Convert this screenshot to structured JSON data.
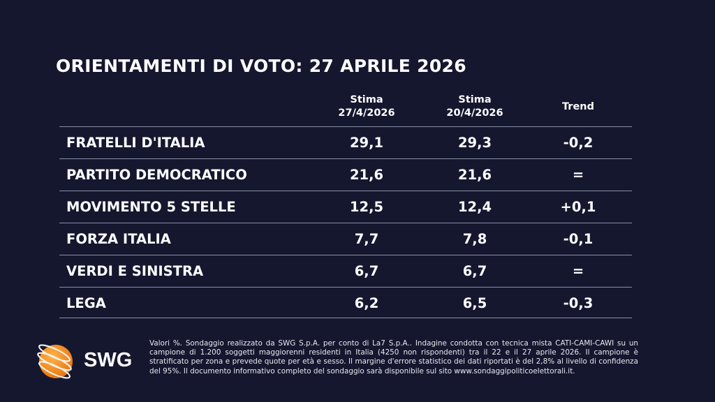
{
  "title": "ORIENTAMENTI DI VOTO: 27 APRILE 2026",
  "chart_data": {
    "type": "table",
    "columns": [
      {
        "line1": "Stima",
        "line2": "27/4/2026"
      },
      {
        "line1": "Stima",
        "line2": "20/4/2026"
      },
      {
        "line1": "Trend",
        "line2": ""
      }
    ],
    "rows": [
      {
        "party": "FRATELLI D'ITALIA",
        "current": "29,1",
        "previous": "29,3",
        "trend": "-0,2"
      },
      {
        "party": "PARTITO DEMOCRATICO",
        "current": "21,6",
        "previous": "21,6",
        "trend": "="
      },
      {
        "party": "MOVIMENTO 5 STELLE",
        "current": "12,5",
        "previous": "12,4",
        "trend": "+0,1"
      },
      {
        "party": "FORZA ITALIA",
        "current": "7,7",
        "previous": "7,8",
        "trend": "-0,1"
      },
      {
        "party": "VERDI E SINISTRA",
        "current": "6,7",
        "previous": "6,7",
        "trend": "="
      },
      {
        "party": "LEGA",
        "current": "6,2",
        "previous": "6,5",
        "trend": "-0,3"
      }
    ]
  },
  "footnote": "Valori %. Sondaggio realizzato da SWG S.p.A. per conto di La7 S.p.A.. Indagine condotta con tecnica mista CATI-CAMI-CAWI su un campione di 1.200 soggetti maggiorenni residenti in Italia (4250 non rispondenti) tra il 22 e il 27 aprile 2026. Il campione è stratificato per zona e prevede quote per età e sesso. Il margine d'errore statistico dei dati riportati è del 2,8% al livello di confidenza del 95%. Il documento informativo completo del sondaggio sarà disponibile sul sito www.sondaggipoliticoelettorali.it.",
  "logo": {
    "text": "SWG",
    "icon": "globe-orbit-icon",
    "color": "#f5931e"
  },
  "colors": {
    "background": "#15172f",
    "text": "#ffffff",
    "rule": "#8a8fa6"
  }
}
